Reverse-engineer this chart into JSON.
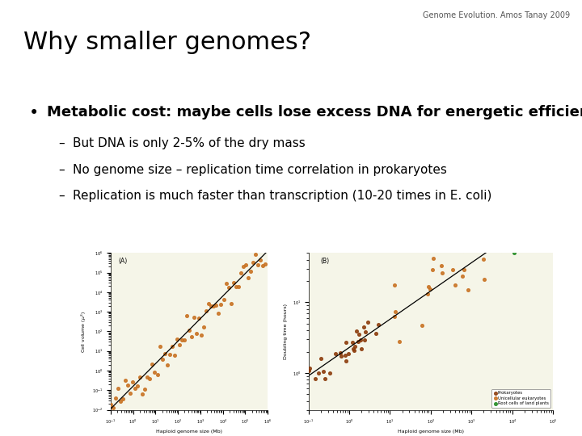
{
  "header": "Genome Evolution. Amos Tanay 2009",
  "title": "Why smaller genomes?",
  "bullet_main": "Metabolic cost: maybe cells lose excess DNA for energetic efficiency",
  "sub_bullets": [
    "But DNA is only 2-5% of the dry mass",
    "No genome size – replication time correlation in prokaryotes",
    "Replication is much faster than transcription (10-20 times in E. coli)"
  ],
  "bg_color": "#ffffff",
  "title_color": "#000000",
  "header_color": "#555555",
  "bullet_color": "#000000",
  "title_fontsize": 22,
  "header_fontsize": 7,
  "bullet_main_fontsize": 13,
  "sub_bullet_fontsize": 11,
  "dot_color_prok": "#c87020",
  "dot_color_uni": "#c87020",
  "dot_color_plant": "#228B22",
  "plot_bg": "#f5f5e8"
}
